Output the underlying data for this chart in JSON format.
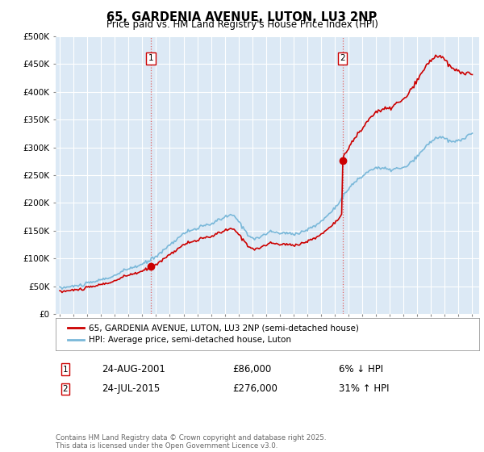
{
  "title": "65, GARDENIA AVENUE, LUTON, LU3 2NP",
  "subtitle": "Price paid vs. HM Land Registry's House Price Index (HPI)",
  "plot_bg_color": "#dce9f5",
  "ylim": [
    0,
    500000
  ],
  "yticks": [
    0,
    50000,
    100000,
    150000,
    200000,
    250000,
    300000,
    350000,
    400000,
    450000,
    500000
  ],
  "ytick_labels": [
    "£0",
    "£50K",
    "£100K",
    "£150K",
    "£200K",
    "£250K",
    "£300K",
    "£350K",
    "£400K",
    "£450K",
    "£500K"
  ],
  "xlim_start": 1994.7,
  "xlim_end": 2025.5,
  "xticks": [
    1995,
    1996,
    1997,
    1998,
    1999,
    2000,
    2001,
    2002,
    2003,
    2004,
    2005,
    2006,
    2007,
    2008,
    2009,
    2010,
    2011,
    2012,
    2013,
    2014,
    2015,
    2016,
    2017,
    2018,
    2019,
    2020,
    2021,
    2022,
    2023,
    2024,
    2025
  ],
  "hpi_color": "#7ab8d9",
  "sale_color": "#cc0000",
  "vline_color": "#e06060",
  "marker_color": "#cc0000",
  "sale1_x": 2001.64,
  "sale1_y": 86000,
  "sale2_x": 2015.56,
  "sale2_y": 276000,
  "legend_sale": "65, GARDENIA AVENUE, LUTON, LU3 2NP (semi-detached house)",
  "legend_hpi": "HPI: Average price, semi-detached house, Luton",
  "annotation1_box": "1",
  "annotation1_date": "24-AUG-2001",
  "annotation1_price": "£86,000",
  "annotation1_hpi": "6% ↓ HPI",
  "annotation2_box": "2",
  "annotation2_date": "24-JUL-2015",
  "annotation2_price": "£276,000",
  "annotation2_hpi": "31% ↑ HPI",
  "footer": "Contains HM Land Registry data © Crown copyright and database right 2025.\nThis data is licensed under the Open Government Licence v3.0."
}
